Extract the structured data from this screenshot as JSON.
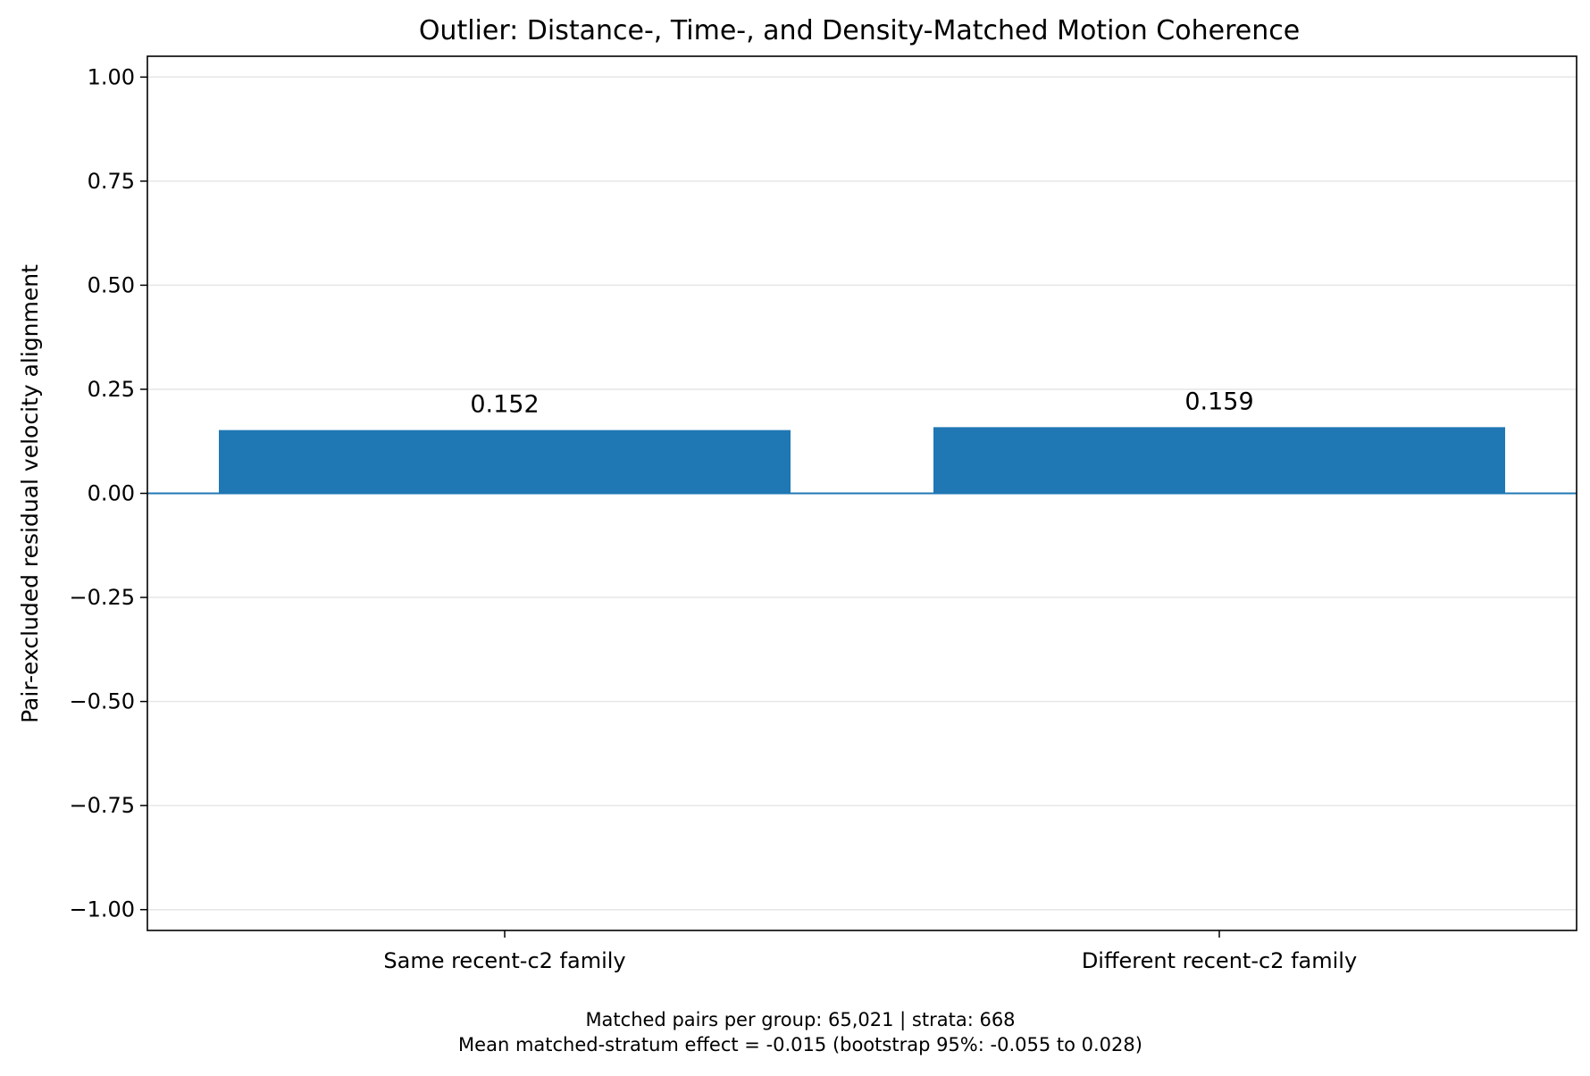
{
  "chart_data": {
    "type": "bar",
    "title": "Outlier: Distance-, Time-, and Density-Matched Motion Coherence",
    "xlabel": "",
    "ylabel": "Pair-excluded residual velocity alignment",
    "categories": [
      "Same recent-c2 family",
      "Different recent-c2 family"
    ],
    "values": [
      0.152,
      0.159
    ],
    "data_labels": [
      "0.152",
      "0.159"
    ],
    "ylim": [
      -1.05,
      1.05
    ],
    "yticks": [
      1.0,
      0.75,
      0.5,
      0.25,
      0.0,
      -0.25,
      -0.5,
      -0.75,
      -1.0
    ],
    "ytick_labels": [
      "1.00",
      "0.75",
      "0.50",
      "0.25",
      "0.00",
      "−0.25",
      "−0.50",
      "−0.75",
      "−1.00"
    ],
    "grid": "horizontal",
    "reference_line": 0,
    "bar_color": "#1f77b4",
    "legend": "none",
    "footer_lines": [
      "Matched pairs per group: 65,021 | strata: 668",
      "Mean matched-stratum effect = -0.015 (bootstrap 95%: -0.055 to 0.028)"
    ]
  }
}
